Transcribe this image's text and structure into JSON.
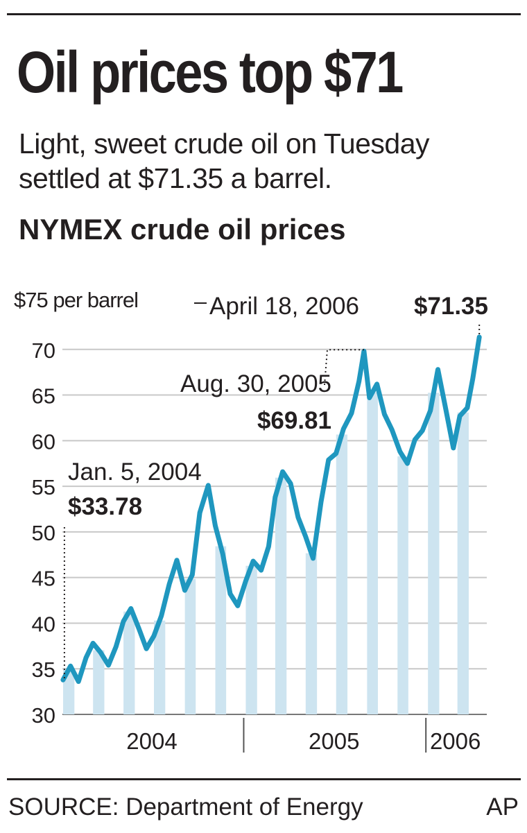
{
  "header": {
    "title": "Oil prices top $71",
    "subtitle": "Light, sweet crude oil on Tuesday settled at $71.35 a barrel."
  },
  "footer": {
    "source": "SOURCE: Department of Energy",
    "credit": "AP"
  },
  "colors": {
    "line": "#1f97bf",
    "bars": "#cde4f0",
    "grid": "#c8c8c8",
    "text": "#231f20"
  },
  "chart_data": {
    "type": "line",
    "title": "NYMEX crude oil prices",
    "ylabel": "$75 per barrel",
    "ylim": [
      30,
      75
    ],
    "yticks": [
      30,
      35,
      40,
      45,
      50,
      55,
      60,
      65,
      70
    ],
    "ytick_labels": [
      "30",
      "35",
      "40",
      "45",
      "50",
      "55",
      "60",
      "65",
      "70"
    ],
    "xlim": [
      "2004-01-01",
      "2006-05-03"
    ],
    "x_dividers": [
      "2005-01-01",
      "2006-01-01"
    ],
    "x_labels": [
      {
        "date": "2004-07-01",
        "label": "2004"
      },
      {
        "date": "2005-07-01",
        "label": "2005"
      },
      {
        "date": "2006-03-01",
        "label": "2006"
      }
    ],
    "grid": true,
    "series": [
      {
        "x": [
          "2004-01-05",
          "2004-01-20",
          "2004-02-05",
          "2004-02-20",
          "2004-03-05",
          "2004-03-20",
          "2004-04-05",
          "2004-04-20",
          "2004-05-05",
          "2004-05-20",
          "2004-06-05",
          "2004-06-20",
          "2004-07-05",
          "2004-07-20",
          "2004-08-05",
          "2004-08-20",
          "2004-09-05",
          "2004-09-20",
          "2004-10-05",
          "2004-10-22",
          "2004-11-05",
          "2004-11-20",
          "2004-12-05",
          "2004-12-20",
          "2005-01-05",
          "2005-01-20",
          "2005-02-05",
          "2005-02-20",
          "2005-03-05",
          "2005-03-20",
          "2005-04-05",
          "2005-04-20",
          "2005-05-05",
          "2005-05-20",
          "2005-06-05",
          "2005-06-20",
          "2005-07-05",
          "2005-07-20",
          "2005-08-05",
          "2005-08-20",
          "2005-08-30",
          "2005-09-10",
          "2005-09-25",
          "2005-10-10",
          "2005-10-25",
          "2005-11-10",
          "2005-11-25",
          "2005-12-10",
          "2005-12-25",
          "2006-01-10",
          "2006-01-25",
          "2006-02-10",
          "2006-02-25",
          "2006-03-10",
          "2006-03-25",
          "2006-04-05",
          "2006-04-18"
        ],
        "y": [
          33.78,
          35.3,
          33.6,
          36.2,
          37.8,
          36.8,
          35.4,
          37.4,
          40.2,
          41.6,
          39.4,
          37.2,
          38.6,
          40.8,
          44.3,
          46.9,
          43.6,
          45.3,
          52.1,
          55.1,
          50.7,
          47.6,
          43.2,
          41.9,
          44.6,
          46.8,
          45.8,
          48.4,
          53.8,
          56.6,
          55.3,
          51.6,
          49.5,
          47.1,
          53.3,
          57.9,
          58.6,
          61.3,
          63.0,
          66.5,
          69.81,
          64.7,
          66.2,
          62.9,
          61.2,
          58.8,
          57.5,
          60.1,
          61.1,
          63.3,
          67.8,
          63.4,
          59.2,
          62.7,
          63.6,
          66.8,
          71.35
        ]
      }
    ],
    "annotations": [
      {
        "date": "2004-01-05",
        "value": 33.78,
        "label": "Jan. 5, 2004",
        "value_label": "$33.78"
      },
      {
        "date": "2005-08-30",
        "value": 69.81,
        "label": "Aug. 30, 2005",
        "value_label": "$69.81"
      },
      {
        "date": "2006-04-18",
        "value": 71.35,
        "label": "April 18, 2006",
        "value_label": "$71.35"
      }
    ],
    "bars_note": "light blue vertical bands behind line"
  }
}
